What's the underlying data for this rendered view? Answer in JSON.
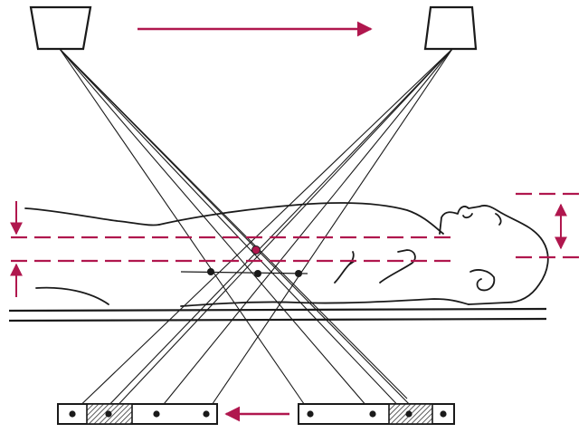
{
  "diagram": {
    "subject": "tomography-principle",
    "colors": {
      "ink": "#1a1a1a",
      "accent": "#b0174e",
      "background": "#ffffff",
      "hatch": "#555555"
    },
    "labels": []
  }
}
